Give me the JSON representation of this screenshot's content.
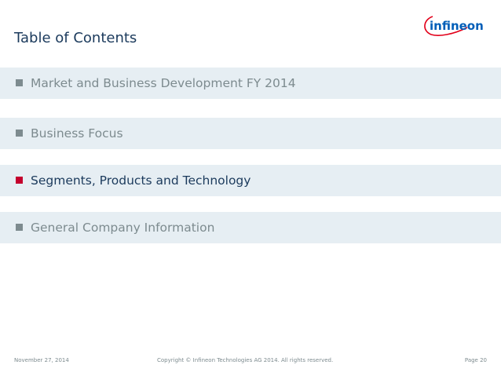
{
  "header": {
    "title": "Table of Contents",
    "logo_text": "infineon",
    "brand_color": "#005eb8",
    "accent_color": "#e2001a"
  },
  "toc": {
    "items": [
      {
        "label": "Market and Business Development FY 2014",
        "active": false
      },
      {
        "label": "Business Focus",
        "active": false
      },
      {
        "label": "Segments, Products and Technology",
        "active": true
      },
      {
        "label": "General Company Information",
        "active": false
      }
    ],
    "bullet_color_default": "#7d8b8f",
    "bullet_color_active": "#c4002d"
  },
  "footer": {
    "date": "November 27, 2014",
    "copyright": "Copyright © Infineon Technologies AG 2014. All rights reserved.",
    "page": "Page 20"
  }
}
